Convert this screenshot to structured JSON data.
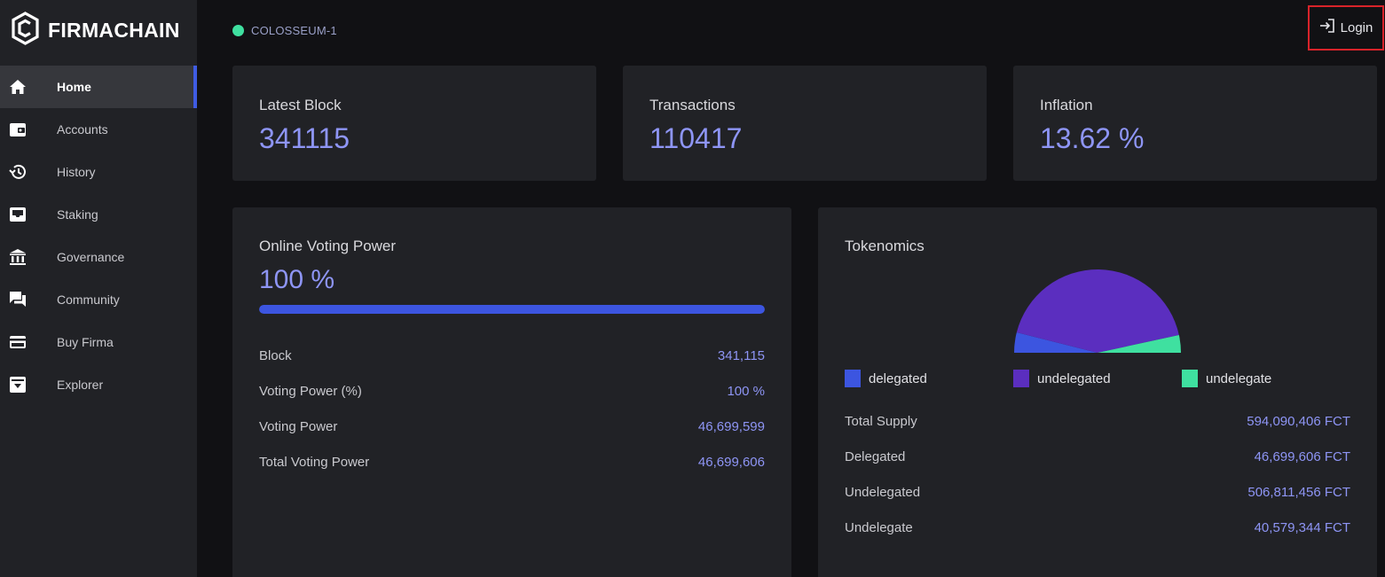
{
  "brand": {
    "name": "FIRMACHAIN"
  },
  "sidebar": {
    "items": [
      {
        "label": "Home",
        "icon": "home-icon",
        "active": true
      },
      {
        "label": "Accounts",
        "icon": "wallet-icon",
        "active": false
      },
      {
        "label": "History",
        "icon": "history-icon",
        "active": false
      },
      {
        "label": "Staking",
        "icon": "inbox-icon",
        "active": false
      },
      {
        "label": "Governance",
        "icon": "bank-icon",
        "active": false
      },
      {
        "label": "Community",
        "icon": "chat-icon",
        "active": false
      },
      {
        "label": "Buy Firma",
        "icon": "credit-card-icon",
        "active": false
      },
      {
        "label": "Explorer",
        "icon": "archive-icon",
        "active": false
      }
    ]
  },
  "header": {
    "network": "COLOSSEUM-1",
    "network_status_color": "#3fe0a0",
    "login_label": "Login"
  },
  "stats": [
    {
      "label": "Latest Block",
      "value": "341115"
    },
    {
      "label": "Transactions",
      "value": "110417"
    },
    {
      "label": "Inflation",
      "value": "13.62 %"
    }
  ],
  "voting": {
    "title": "Online Voting Power",
    "value": "100 %",
    "progress_fraction": 1.0,
    "rows": [
      {
        "label": "Block",
        "value": "341,115"
      },
      {
        "label": "Voting Power (%)",
        "value": "100 %"
      },
      {
        "label": "Voting Power",
        "value": "46,699,599"
      },
      {
        "label": "Total Voting Power",
        "value": "46,699,606"
      }
    ]
  },
  "tokenomics": {
    "title": "Tokenomics",
    "legend": [
      {
        "label": "delegated",
        "color": "#3c55e0"
      },
      {
        "label": "undelegated",
        "color": "#5b2ebf"
      },
      {
        "label": "undelegate",
        "color": "#3fe0a0"
      }
    ],
    "rows": [
      {
        "label": "Total Supply",
        "value": "594,090,406 FCT"
      },
      {
        "label": "Delegated",
        "value": "46,699,606 FCT"
      },
      {
        "label": "Undelegated",
        "value": "506,811,456 FCT"
      },
      {
        "label": "Undelegate",
        "value": "40,579,344 FCT"
      }
    ]
  },
  "chart_data": {
    "type": "pie",
    "variant": "half-pie",
    "categories": [
      "delegated",
      "undelegated",
      "undelegate"
    ],
    "values": [
      46699606,
      506811456,
      40579344
    ],
    "colors": [
      "#3c55e0",
      "#5b2ebf",
      "#3fe0a0"
    ]
  },
  "colors": {
    "accent": "#8e95f5",
    "active_bar": "#3f5ce3",
    "login_outline": "#d8232a"
  }
}
